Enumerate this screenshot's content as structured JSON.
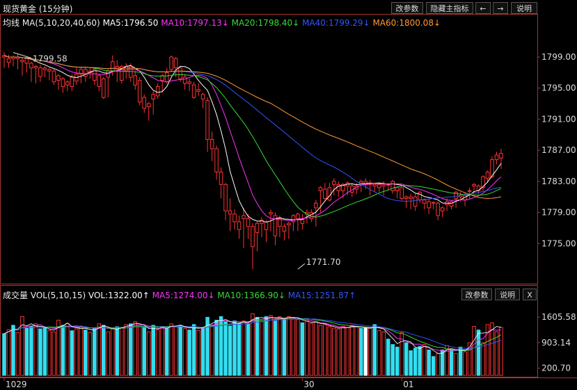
{
  "header": {
    "title": "现货黄金 (15分钟)",
    "buttons": [
      "改参数",
      "隐藏主指标",
      "←",
      "→",
      "说明"
    ]
  },
  "ma_legend": {
    "label": "均线",
    "params": "MA(5,10,20,40,60)",
    "items": [
      {
        "text": "MA5:1796.50",
        "color": "#ffffff"
      },
      {
        "text": "MA10:1797.13↓",
        "color": "#ff33ff"
      },
      {
        "text": "MA20:1798.40↓",
        "color": "#33dd33"
      },
      {
        "text": "MA40:1799.29↓",
        "color": "#3355ff"
      },
      {
        "text": "MA60:1800.08↓",
        "color": "#ff9933"
      }
    ]
  },
  "vol_legend": {
    "label": "成交量",
    "params": "VOL(5,10,15)",
    "items": [
      {
        "text": "VOL:1322.00↑",
        "color": "#ffffff"
      },
      {
        "text": "MA5:1274.00↓",
        "color": "#ff33ff"
      },
      {
        "text": "MA10:1366.90↓",
        "color": "#33dd33"
      },
      {
        "text": "MA15:1251.87↑",
        "color": "#3355ff"
      }
    ],
    "buttons": [
      "改参数",
      "说明",
      "X"
    ]
  },
  "chart_data": [
    {
      "type": "candlestick",
      "yticks": [
        "1799.00",
        "1795.00",
        "1791.00",
        "1787.00",
        "1783.00",
        "1779.00",
        "1775.00"
      ],
      "ylim": [
        1770.2,
        1802.4
      ],
      "annotations": [
        {
          "text": "1799.58",
          "x": 2,
          "y": 1799.58
        },
        {
          "text": "1771.70",
          "x": 65,
          "y": 1771.7
        }
      ],
      "colors": {
        "up": "#ff3333",
        "down": "#33ddee"
      },
      "candles": [
        [
          1799.0,
          1799.6,
          1799.2,
          1797.6
        ],
        [
          1798.3,
          1799.3,
          1798.8,
          1797.6
        ],
        [
          1798.8,
          1799.2,
          1799.0,
          1797.8
        ],
        [
          1798.8,
          1799.4,
          1799.0,
          1797.4
        ],
        [
          1798.4,
          1799.0,
          1798.6,
          1796.6
        ],
        [
          1798.2,
          1799.0,
          1798.8,
          1797.0
        ],
        [
          1797.6,
          1798.4,
          1798.2,
          1795.8
        ],
        [
          1797.6,
          1798.0,
          1797.8,
          1795.6
        ],
        [
          1796.5,
          1798.0,
          1797.6,
          1795.8
        ],
        [
          1797.4,
          1797.8,
          1797.6,
          1796.4
        ],
        [
          1797.2,
          1797.6,
          1797.4,
          1796.0
        ],
        [
          1795.8,
          1797.4,
          1797.2,
          1795.4
        ],
        [
          1796.0,
          1796.8,
          1796.6,
          1794.8
        ],
        [
          1795.2,
          1796.4,
          1796.2,
          1794.4
        ],
        [
          1795.4,
          1796.0,
          1795.8,
          1794.6
        ],
        [
          1795.2,
          1796.8,
          1796.4,
          1794.6
        ],
        [
          1795.9,
          1797.6,
          1796.8,
          1795.4
        ],
        [
          1796.8,
          1797.6,
          1797.4,
          1795.6
        ],
        [
          1796.5,
          1797.6,
          1797.4,
          1795.8
        ],
        [
          1797.0,
          1797.6,
          1797.2,
          1796.2
        ],
        [
          1796.0,
          1797.6,
          1797.4,
          1795.4
        ],
        [
          1795.2,
          1796.8,
          1796.6,
          1794.6
        ],
        [
          1793.8,
          1796.4,
          1796.2,
          1793.6
        ],
        [
          1796.4,
          1797.4,
          1797.2,
          1793.8
        ],
        [
          1797.2,
          1799.2,
          1798.4,
          1796.6
        ],
        [
          1797.4,
          1798.6,
          1797.8,
          1795.8
        ],
        [
          1796.0,
          1798.0,
          1797.8,
          1795.6
        ],
        [
          1797.2,
          1798.2,
          1797.8,
          1796.2
        ],
        [
          1796.4,
          1798.2,
          1797.8,
          1795.8
        ],
        [
          1795.4,
          1797.2,
          1796.6,
          1794.8
        ],
        [
          1793.2,
          1796.4,
          1796.0,
          1792.8
        ],
        [
          1792.4,
          1794.2,
          1793.8,
          1791.8
        ],
        [
          1792.6,
          1793.2,
          1793.0,
          1790.8
        ],
        [
          1793.6,
          1794.6,
          1794.2,
          1791.6
        ],
        [
          1794.0,
          1795.6,
          1795.2,
          1793.6
        ],
        [
          1796.0,
          1796.8,
          1796.6,
          1794.4
        ],
        [
          1795.8,
          1797.6,
          1797.0,
          1795.6
        ],
        [
          1797.4,
          1799.2,
          1799.0,
          1797.2
        ],
        [
          1797.6,
          1799.0,
          1798.8,
          1796.4
        ],
        [
          1796.2,
          1797.8,
          1797.6,
          1795.8
        ],
        [
          1795.6,
          1796.8,
          1796.4,
          1794.8
        ],
        [
          1795.6,
          1796.2,
          1795.8,
          1794.6
        ],
        [
          1793.8,
          1795.8,
          1795.4,
          1793.6
        ],
        [
          1794.6,
          1795.6,
          1794.8,
          1794.0
        ],
        [
          1793.6,
          1794.4,
          1794.2,
          1792.4
        ],
        [
          1788.4,
          1793.8,
          1793.4,
          1786.8
        ],
        [
          1787.2,
          1789.4,
          1788.4,
          1785.6
        ],
        [
          1784.2,
          1787.6,
          1787.2,
          1783.2
        ],
        [
          1782.6,
          1784.8,
          1784.2,
          1780.8
        ],
        [
          1779.2,
          1782.8,
          1782.6,
          1778.0
        ],
        [
          1778.8,
          1780.8,
          1779.2,
          1776.6
        ],
        [
          1777.8,
          1779.4,
          1778.8,
          1776.8
        ],
        [
          1776.8,
          1778.6,
          1777.8,
          1775.6
        ],
        [
          1778.2,
          1779.6,
          1778.6,
          1774.4
        ],
        [
          1777.2,
          1778.8,
          1778.2,
          1775.6
        ],
        [
          1774.6,
          1777.6,
          1777.2,
          1771.7
        ],
        [
          1776.4,
          1777.8,
          1777.6,
          1774.0
        ],
        [
          1777.6,
          1778.4,
          1778.0,
          1775.8
        ],
        [
          1776.8,
          1778.0,
          1777.8,
          1775.2
        ],
        [
          1778.8,
          1779.4,
          1779.0,
          1776.6
        ],
        [
          1776.0,
          1779.0,
          1778.6,
          1774.8
        ],
        [
          1777.2,
          1778.6,
          1778.2,
          1775.8
        ],
        [
          1776.6,
          1777.6,
          1777.2,
          1775.4
        ],
        [
          1777.4,
          1777.8,
          1777.6,
          1775.6
        ],
        [
          1777.8,
          1778.8,
          1778.6,
          1776.6
        ],
        [
          1778.2,
          1779.0,
          1778.8,
          1776.6
        ],
        [
          1777.6,
          1778.8,
          1778.2,
          1776.8
        ],
        [
          1778.8,
          1779.4,
          1779.0,
          1777.6
        ],
        [
          1778.2,
          1779.4,
          1779.0,
          1777.8
        ],
        [
          1779.6,
          1780.6,
          1780.2,
          1777.2
        ],
        [
          1781.8,
          1782.4,
          1782.2,
          1779.0
        ],
        [
          1780.8,
          1782.8,
          1782.0,
          1780.6
        ],
        [
          1780.6,
          1782.8,
          1782.2,
          1780.4
        ],
        [
          1782.6,
          1783.4,
          1783.0,
          1781.2
        ],
        [
          1781.8,
          1783.0,
          1782.6,
          1781.0
        ],
        [
          1781.8,
          1782.8,
          1782.6,
          1780.8
        ],
        [
          1782.4,
          1783.0,
          1782.8,
          1781.2
        ],
        [
          1781.6,
          1782.8,
          1782.4,
          1781.0
        ],
        [
          1782.0,
          1782.8,
          1782.4,
          1781.4
        ],
        [
          1782.8,
          1783.2,
          1783.0,
          1781.6
        ],
        [
          1782.6,
          1783.4,
          1783.0,
          1782.0
        ],
        [
          1782.6,
          1783.2,
          1782.8,
          1781.2
        ],
        [
          1782.4,
          1782.6,
          1782.6,
          1781.6
        ],
        [
          1782.2,
          1782.8,
          1782.6,
          1781.6
        ],
        [
          1782.4,
          1783.0,
          1782.6,
          1781.2
        ],
        [
          1782.6,
          1782.8,
          1782.6,
          1781.8
        ],
        [
          1781.8,
          1783.2,
          1783.0,
          1781.4
        ],
        [
          1781.8,
          1782.2,
          1782.2,
          1780.8
        ],
        [
          1780.8,
          1782.4,
          1782.2,
          1780.6
        ],
        [
          1780.8,
          1781.2,
          1781.0,
          1779.6
        ],
        [
          1780.8,
          1781.4,
          1781.0,
          1779.4
        ],
        [
          1779.8,
          1781.4,
          1781.0,
          1779.2
        ],
        [
          1780.6,
          1781.8,
          1781.6,
          1780.2
        ],
        [
          1780.2,
          1780.8,
          1780.6,
          1779.4
        ],
        [
          1779.6,
          1780.8,
          1780.4,
          1778.8
        ],
        [
          1780.2,
          1780.4,
          1780.3,
          1779.4
        ],
        [
          1778.6,
          1780.4,
          1780.2,
          1778.0
        ],
        [
          1779.2,
          1779.8,
          1779.6,
          1778.4
        ],
        [
          1780.0,
          1780.8,
          1780.4,
          1779.2
        ],
        [
          1779.8,
          1780.6,
          1780.4,
          1779.4
        ],
        [
          1780.8,
          1781.8,
          1781.6,
          1779.6
        ],
        [
          1781.0,
          1781.6,
          1781.2,
          1780.4
        ],
        [
          1780.6,
          1781.6,
          1781.2,
          1779.8
        ],
        [
          1781.8,
          1782.2,
          1781.8,
          1780.8
        ],
        [
          1782.4,
          1782.8,
          1782.6,
          1781.4
        ],
        [
          1781.8,
          1782.6,
          1782.4,
          1781.4
        ],
        [
          1782.2,
          1783.8,
          1783.6,
          1781.8
        ],
        [
          1783.4,
          1784.4,
          1784.2,
          1782.8
        ],
        [
          1783.6,
          1786.2,
          1785.8,
          1783.4
        ],
        [
          1785.8,
          1786.8,
          1786.4,
          1785.2
        ],
        [
          1786.0,
          1787.2,
          1786.6,
          1784.6
        ]
      ]
    },
    {
      "type": "bar",
      "yticks": [
        "1605.58",
        "903.14",
        "200.70"
      ],
      "ylim": [
        0,
        2068
      ],
      "values": [
        1150,
        1260,
        1380,
        1180,
        1620,
        1300,
        1350,
        1420,
        1280,
        1310,
        1240,
        1200,
        1520,
        1380,
        1430,
        1230,
        1280,
        1360,
        1250,
        1190,
        1300,
        1420,
        1380,
        1200,
        1280,
        1340,
        1310,
        1400,
        1420,
        1480,
        1360,
        1320,
        1200,
        1380,
        1260,
        1340,
        1300,
        1420,
        1360,
        1380,
        1290,
        1250,
        1400,
        1240,
        1300,
        1600,
        1380,
        1520,
        1620,
        1480,
        1360,
        1500,
        1440,
        1500,
        1420,
        1700,
        1600,
        1480,
        1620,
        1650,
        1500,
        1620,
        1540,
        1620,
        1600,
        1540,
        1450,
        1500,
        1430,
        1480,
        1380,
        1400,
        1340,
        1300,
        1280,
        1350,
        1320,
        1380,
        1340,
        1300,
        1300,
        1300,
        1400,
        1240,
        1200,
        1000,
        850,
        780,
        1180,
        900,
        680,
        750,
        800,
        850,
        700,
        520,
        600,
        700,
        820,
        700,
        600,
        780,
        650,
        900,
        1350,
        1250,
        900,
        1400,
        1450,
        1200,
        1322
      ],
      "up": [
        false,
        true,
        false,
        true,
        true,
        false,
        false,
        true,
        false,
        false,
        true,
        true,
        true,
        false,
        true,
        false,
        true,
        true,
        false,
        true,
        false,
        true,
        false,
        true,
        true,
        false,
        true,
        true,
        false,
        true,
        true,
        false,
        true,
        false,
        true,
        true,
        false,
        true,
        true,
        false,
        true,
        false,
        false,
        true,
        false,
        false,
        true,
        false,
        false,
        false,
        false,
        false,
        false,
        true,
        false,
        true,
        false,
        true,
        false,
        true,
        false,
        true,
        false,
        true,
        true,
        true,
        false,
        true,
        true,
        true,
        true,
        true,
        true,
        true,
        true,
        true,
        true,
        true,
        true,
        false,
        false,
        true,
        false,
        true,
        true,
        false,
        false,
        false,
        true,
        false,
        false,
        false,
        false,
        true,
        false,
        false,
        true,
        false,
        true,
        false,
        true,
        false,
        true,
        true,
        true,
        false,
        true,
        true,
        true,
        true,
        true,
        true
      ],
      "highlight": [
        false,
        false,
        false,
        false,
        false,
        false,
        false,
        false,
        false,
        false,
        false,
        false,
        false,
        false,
        false,
        false,
        false,
        false,
        false,
        false,
        false,
        false,
        false,
        false,
        false,
        false,
        false,
        false,
        false,
        false,
        false,
        false,
        false,
        false,
        false,
        false,
        false,
        false,
        false,
        false,
        false,
        false,
        false,
        false,
        false,
        false,
        false,
        false,
        false,
        false,
        false,
        false,
        false,
        false,
        false,
        false,
        false,
        false,
        false,
        false,
        false,
        false,
        false,
        false,
        false,
        false,
        false,
        false,
        false,
        false,
        false,
        false,
        false,
        false,
        false,
        false,
        false,
        false,
        false,
        false,
        false,
        false,
        false,
        false,
        false,
        false,
        false,
        false,
        false,
        false,
        false,
        false,
        false,
        false,
        false,
        false,
        false,
        false,
        false,
        false,
        false,
        false,
        false,
        false,
        false,
        false,
        false,
        false,
        false,
        false,
        false,
        false
      ],
      "white_bar_index": 80
    }
  ],
  "x_axis": {
    "labels": [
      {
        "text": "1029",
        "index": 0
      },
      {
        "text": "30",
        "index": 66
      },
      {
        "text": "01",
        "index": 88
      }
    ]
  }
}
